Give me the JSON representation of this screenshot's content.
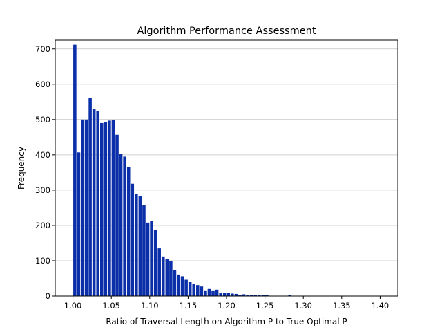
{
  "chart_data": {
    "type": "bar",
    "title": "Algorithm Performance Assessment",
    "xlabel": "Ratio of Traversal Length on Algorithm P to True Optimal P",
    "ylabel": "Frequency",
    "xlim": [
      0.977,
      1.423
    ],
    "ylim": [
      0,
      725
    ],
    "xticks": [
      1.0,
      1.05,
      1.1,
      1.15,
      1.2,
      1.25,
      1.3,
      1.35,
      1.4
    ],
    "xtick_labels": [
      "1.00",
      "1.05",
      "1.10",
      "1.15",
      "1.20",
      "1.25",
      "1.30",
      "1.35",
      "1.40"
    ],
    "yticks": [
      0,
      100,
      200,
      300,
      400,
      500,
      600,
      700
    ],
    "ytick_labels": [
      "0",
      "100",
      "200",
      "300",
      "400",
      "500",
      "600",
      "700"
    ],
    "grid": "y",
    "bar_color": "#0b2fa8",
    "bin_start": 1.0,
    "bin_width": 0.005,
    "values": [
      712,
      407,
      500,
      500,
      562,
      530,
      525,
      490,
      493,
      497,
      498,
      457,
      403,
      395,
      366,
      318,
      290,
      283,
      257,
      208,
      213,
      188,
      135,
      112,
      105,
      100,
      74,
      61,
      56,
      46,
      40,
      34,
      31,
      27,
      16,
      20,
      16,
      18,
      9,
      9,
      9,
      7,
      6,
      3,
      5,
      3,
      3,
      3,
      3,
      2,
      2,
      1,
      1,
      0,
      1,
      0,
      2,
      0,
      0,
      0,
      0,
      0,
      0,
      0,
      0,
      0,
      0,
      0,
      0,
      0,
      0,
      0,
      0,
      0,
      0,
      0,
      0,
      0,
      0,
      0,
      1,
      1
    ]
  }
}
